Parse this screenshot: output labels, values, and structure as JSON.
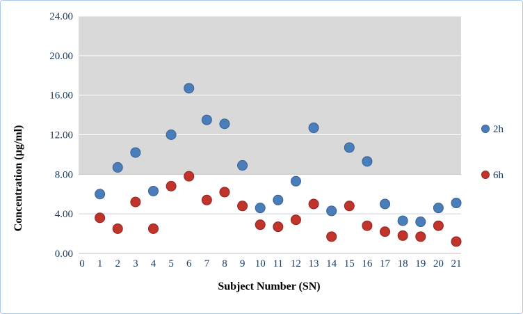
{
  "chart_data": {
    "type": "scatter",
    "title": "",
    "xlabel": "Subject Number (SN)",
    "ylabel": "Concentration (µg/ml)",
    "xlim": [
      0,
      21
    ],
    "ylim": [
      0,
      24
    ],
    "grid": true,
    "legend_position": "right",
    "x_tick_labels": [
      "0",
      "1",
      "2",
      "3",
      "4",
      "5",
      "6",
      "7",
      "8",
      "9",
      "10",
      "11",
      "12",
      "13",
      "14",
      "15",
      "16",
      "17",
      "18",
      "19",
      "20",
      "21"
    ],
    "y_tick_labels": [
      "0.00",
      "4.00",
      "8.00",
      "12.00",
      "16.00",
      "20.00",
      "24.00"
    ],
    "y_tick_values": [
      0,
      4,
      8,
      12,
      16,
      20,
      24
    ],
    "shaded_band": {
      "from": 8,
      "to": 24,
      "color": "#d9d9d9"
    },
    "x": [
      1,
      2,
      3,
      4,
      5,
      6,
      7,
      8,
      9,
      10,
      11,
      12,
      13,
      14,
      15,
      16,
      17,
      18,
      19,
      20,
      21
    ],
    "series": [
      {
        "name": "2h",
        "color": "#4a7ebb",
        "edge_color": "#365f91",
        "values": [
          6.0,
          8.7,
          10.2,
          6.3,
          12.0,
          16.7,
          13.5,
          13.1,
          8.9,
          4.6,
          5.4,
          7.3,
          12.7,
          4.3,
          10.7,
          9.3,
          5.0,
          3.3,
          3.2,
          4.6,
          5.1
        ]
      },
      {
        "name": "6h",
        "color": "#c0342c",
        "edge_color": "#8f241e",
        "values": [
          3.6,
          2.5,
          5.2,
          2.5,
          6.8,
          7.8,
          5.4,
          6.2,
          4.8,
          2.9,
          2.7,
          3.4,
          5.0,
          1.7,
          4.8,
          2.8,
          2.2,
          1.8,
          1.7,
          2.8,
          1.2
        ]
      }
    ]
  }
}
